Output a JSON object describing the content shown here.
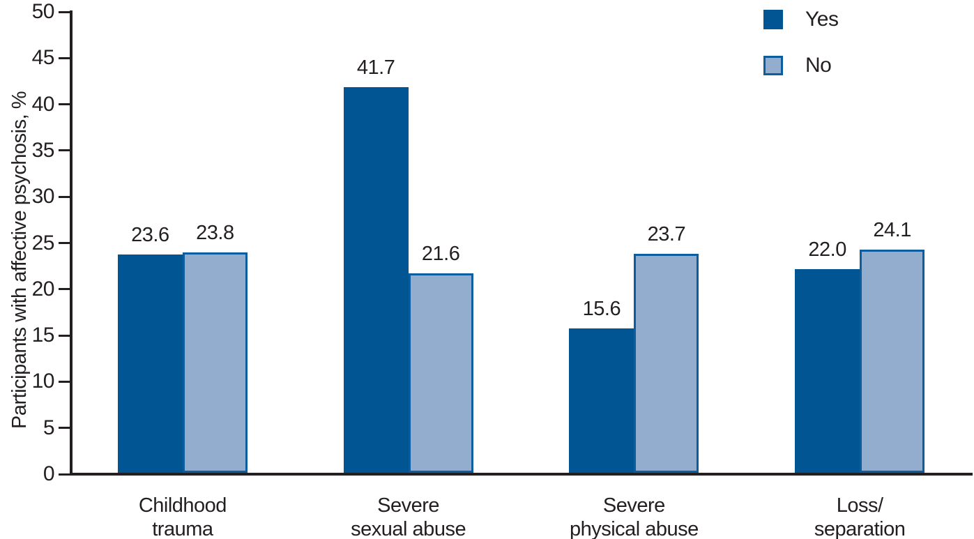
{
  "chart_data": {
    "type": "bar",
    "title": "",
    "ylabel": "Participants with affective psychosis, %",
    "xlabel": "",
    "ylim": [
      0,
      50
    ],
    "ytick_step": 5,
    "ytick_labels": [
      "0",
      "5",
      "10",
      "15",
      "20",
      "25",
      "30",
      "35",
      "40",
      "45",
      "50"
    ],
    "grid": false,
    "legend_position": "top-right",
    "axis_color": "#231f20",
    "text_color": "#231f20",
    "categories": [
      "Childhood trauma",
      "Severe sexual abuse",
      "Severe physical abuse",
      "Loss/separation"
    ],
    "category_label_lines": [
      [
        "Childhood",
        "trauma"
      ],
      [
        "Severe",
        "sexual abuse"
      ],
      [
        "Severe",
        "physical abuse"
      ],
      [
        "Loss/",
        "separation"
      ]
    ],
    "series": [
      {
        "name": "Yes",
        "values": [
          23.6,
          41.7,
          15.6,
          22.0
        ],
        "fill": "#005592",
        "border": "#005592"
      },
      {
        "name": "No",
        "values": [
          23.8,
          21.6,
          23.7,
          24.1
        ],
        "fill": "#93adce",
        "border": "#0b5d9e"
      }
    ],
    "value_label_decimals": 1
  }
}
